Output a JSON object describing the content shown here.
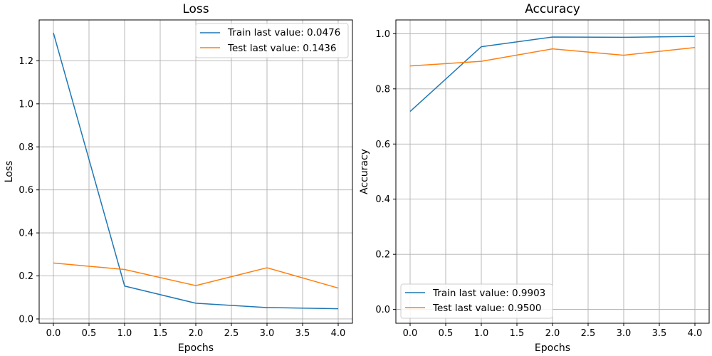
{
  "chart_data": [
    {
      "type": "line",
      "title": "Loss",
      "xlabel": "Epochs",
      "ylabel": "Loss",
      "xlim": [
        -0.2,
        4.2
      ],
      "ylim": [
        -0.02,
        1.39
      ],
      "x_ticks": [
        "0.0",
        "0.5",
        "1.0",
        "1.5",
        "2.0",
        "2.5",
        "3.0",
        "3.5",
        "4.0"
      ],
      "y_ticks": [
        "0.0",
        "0.2",
        "0.4",
        "0.6",
        "0.8",
        "1.0",
        "1.2"
      ],
      "grid": true,
      "legend_position": "top-right",
      "x": [
        0,
        1,
        2,
        3,
        4
      ],
      "series": [
        {
          "name": "Train last value: 0.0476",
          "color": "#1f77b4",
          "values": [
            1.33,
            0.153,
            0.073,
            0.053,
            0.0476
          ]
        },
        {
          "name": "Test last value: 0.1436",
          "color": "#ff7f0e",
          "values": [
            0.26,
            0.23,
            0.155,
            0.238,
            0.1436
          ]
        }
      ]
    },
    {
      "type": "line",
      "title": "Accuracy",
      "xlabel": "Epochs",
      "ylabel": "Accuracy",
      "xlim": [
        -0.2,
        4.2
      ],
      "ylim": [
        -0.05,
        1.05
      ],
      "x_ticks": [
        "0.0",
        "0.5",
        "1.0",
        "1.5",
        "2.0",
        "2.5",
        "3.0",
        "3.5",
        "4.0"
      ],
      "y_ticks": [
        "0.0",
        "0.2",
        "0.4",
        "0.6",
        "0.8",
        "1.0"
      ],
      "grid": true,
      "legend_position": "bottom-left",
      "x": [
        0,
        1,
        2,
        3,
        4
      ],
      "series": [
        {
          "name": "Train last value: 0.9903",
          "color": "#1f77b4",
          "values": [
            0.718,
            0.953,
            0.988,
            0.987,
            0.9903
          ]
        },
        {
          "name": "Test last value: 0.9500",
          "color": "#ff7f0e",
          "values": [
            0.883,
            0.9,
            0.945,
            0.922,
            0.95
          ]
        }
      ]
    }
  ]
}
